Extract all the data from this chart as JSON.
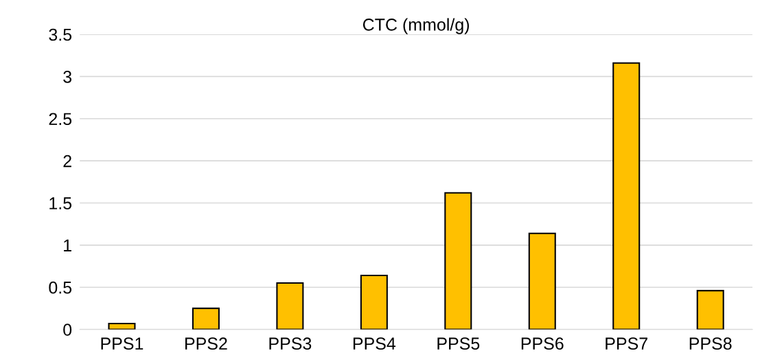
{
  "chart_data": {
    "type": "bar",
    "title": "CTC (mmol/g)",
    "categories": [
      "PPS1",
      "PPS2",
      "PPS3",
      "PPS4",
      "PPS5",
      "PPS6",
      "PPS7",
      "PPS8"
    ],
    "values": [
      0.07,
      0.25,
      0.55,
      0.64,
      1.62,
      1.14,
      3.16,
      0.46
    ],
    "color": "#ffc000",
    "ylim": [
      0,
      3.5
    ],
    "yticks": [
      0,
      0.5,
      1,
      1.5,
      2,
      2.5,
      3,
      3.5
    ],
    "grid": "y"
  }
}
